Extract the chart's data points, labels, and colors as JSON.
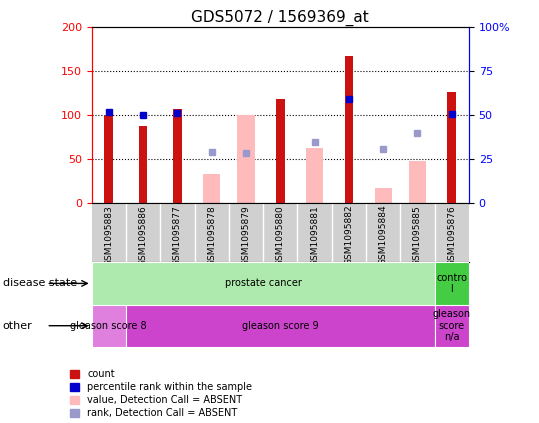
{
  "title": "GDS5072 / 1569369_at",
  "samples": [
    "GSM1095883",
    "GSM1095886",
    "GSM1095877",
    "GSM1095878",
    "GSM1095879",
    "GSM1095880",
    "GSM1095881",
    "GSM1095882",
    "GSM1095884",
    "GSM1095885",
    "GSM1095876"
  ],
  "count_values": [
    100,
    88,
    107,
    null,
    null,
    118,
    null,
    168,
    null,
    null,
    127
  ],
  "count_absent": [
    null,
    null,
    null,
    33,
    100,
    null,
    63,
    null,
    17,
    48,
    null
  ],
  "percentile_present": [
    52,
    50,
    51.5,
    null,
    null,
    null,
    null,
    59.5,
    null,
    null,
    50.5
  ],
  "rank_absent": [
    null,
    null,
    null,
    29,
    28.5,
    null,
    35,
    null,
    31,
    40,
    null
  ],
  "ylim_left": [
    0,
    200
  ],
  "ylim_right": [
    0,
    100
  ],
  "left_ticks": [
    0,
    50,
    100,
    150,
    200
  ],
  "right_ticks": [
    0,
    25,
    50,
    75,
    100
  ],
  "right_tick_labels": [
    "0",
    "25",
    "50",
    "75",
    "100%"
  ],
  "disease_state_groups": [
    {
      "label": "prostate cancer",
      "start": 0,
      "end": 10,
      "color": "#aeeaae"
    },
    {
      "label": "contro\nl",
      "start": 10,
      "end": 11,
      "color": "#44cc44"
    }
  ],
  "other_groups": [
    {
      "label": "gleason score 8",
      "start": 0,
      "end": 1,
      "color": "#df80df"
    },
    {
      "label": "gleason score 9",
      "start": 1,
      "end": 10,
      "color": "#cc44cc"
    },
    {
      "label": "gleason\nscore\nn/a",
      "start": 10,
      "end": 11,
      "color": "#cc44cc"
    }
  ],
  "bar_color_red": "#cc1111",
  "bar_color_pink": "#ffbbbb",
  "dot_color_blue": "#0000cc",
  "dot_color_lightblue": "#9999cc",
  "bg_color_chart": "#ffffff",
  "bg_color_labels": "#d0d0d0",
  "legend_items": [
    {
      "label": "count",
      "color": "#cc1111"
    },
    {
      "label": "percentile rank within the sample",
      "color": "#0000cc"
    },
    {
      "label": "value, Detection Call = ABSENT",
      "color": "#ffbbbb"
    },
    {
      "label": "rank, Detection Call = ABSENT",
      "color": "#9999cc"
    }
  ]
}
